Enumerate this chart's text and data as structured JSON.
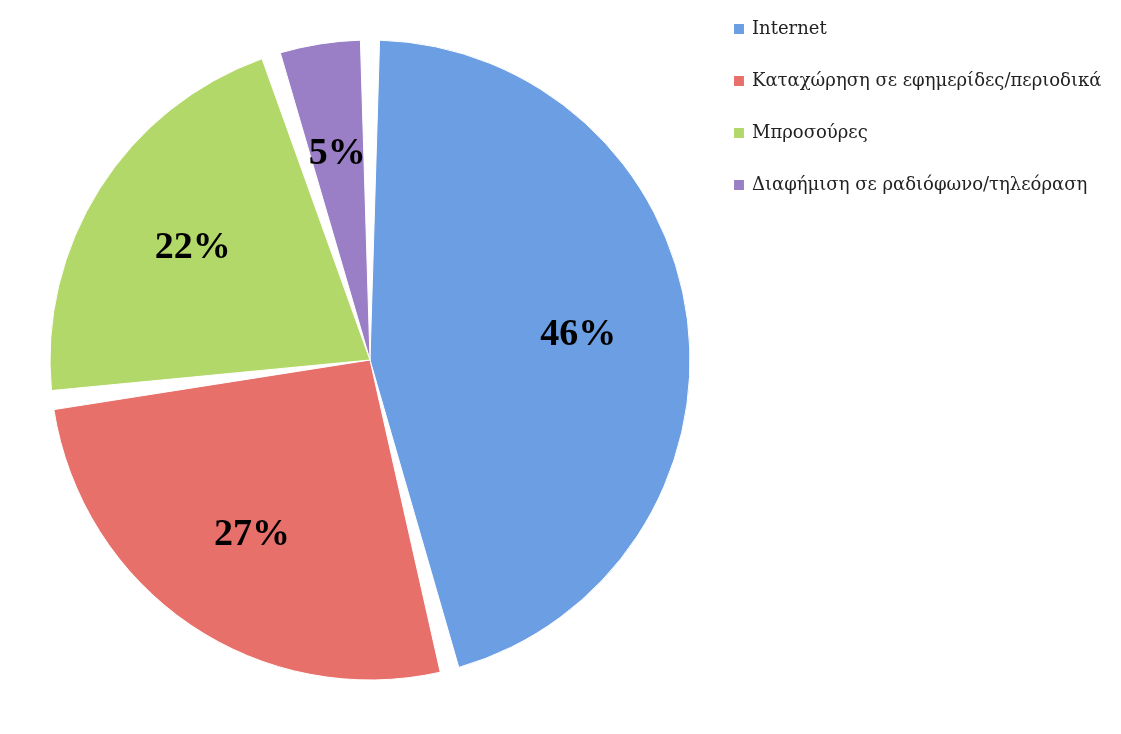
{
  "chart_data": {
    "type": "pie",
    "categories": [
      "Internet",
      "Καταχώρηση σε εφημερίδες/περιοδικά",
      "Μπροσούρες",
      "Διαφήμιση σε ραδιόφωνο/τηλεόραση"
    ],
    "values": [
      46,
      27,
      22,
      5
    ],
    "colors": [
      "#6b9ee3",
      "#e8706a",
      "#b3d86a",
      "#9a7fc6"
    ],
    "value_labels": [
      "46%",
      "27%",
      "22%",
      "5%"
    ],
    "legend": "right"
  }
}
